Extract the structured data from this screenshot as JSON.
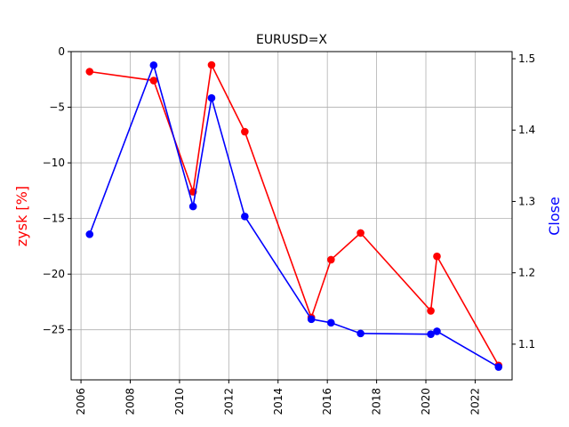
{
  "chart_data": {
    "type": "line",
    "title": "EURUSD=X",
    "xlabel": "",
    "ylabel_left": "zysk [%]",
    "ylabel_right": "Close",
    "x_ticks": [
      "2006",
      "2008",
      "2010",
      "2012",
      "2014",
      "2016",
      "2018",
      "2020",
      "2022"
    ],
    "y_left_ticks": [
      "0",
      "−5",
      "−10",
      "−15",
      "−20",
      "−25"
    ],
    "y_right_ticks": [
      "1.1",
      "1.2",
      "1.3",
      "1.4",
      "1.5"
    ],
    "xlim": [
      2005.6,
      2023.5
    ],
    "ylim_left": [
      -29.5,
      0
    ],
    "ylim_right": [
      1.05,
      1.51
    ],
    "grid": true,
    "colors": {
      "left": "#ff0000",
      "right": "#0000ff"
    },
    "series": [
      {
        "axis": "left",
        "x": [
          2006.35,
          2008.95,
          2010.55,
          2011.3,
          2012.65,
          2015.35,
          2016.15,
          2017.35,
          2020.2,
          2020.45,
          2022.95
        ],
        "y": [
          -1.8,
          -2.6,
          -12.6,
          -1.2,
          -7.2,
          -23.9,
          -18.7,
          -16.3,
          -23.3,
          -18.4,
          -28.2
        ]
      },
      {
        "axis": "right",
        "x": [
          2006.35,
          2008.95,
          2010.55,
          2011.3,
          2012.65,
          2015.35,
          2016.15,
          2017.35,
          2020.2,
          2020.45,
          2022.95
        ],
        "y": [
          1.254,
          1.491,
          1.293,
          1.445,
          1.279,
          1.135,
          1.13,
          1.115,
          1.114,
          1.118,
          1.068
        ]
      }
    ]
  }
}
